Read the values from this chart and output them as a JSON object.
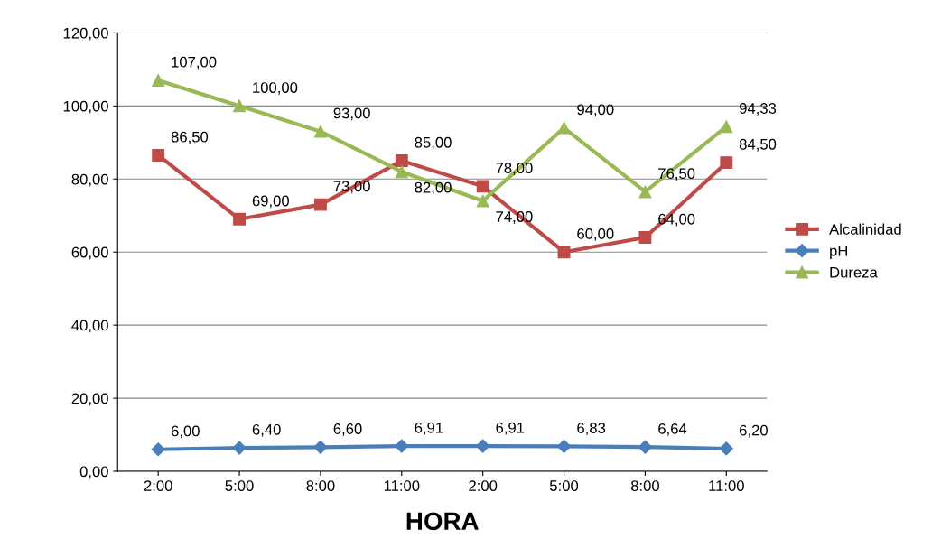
{
  "chart_data": {
    "type": "line",
    "xlabel": "HORA",
    "categories": [
      "2:00",
      "5:00",
      "8:00",
      "11:00",
      "2:00",
      "5:00",
      "8:00",
      "11:00"
    ],
    "series": [
      {
        "name": "Alcalinidad",
        "color": "#be4b48",
        "marker": "square",
        "values": [
          86.5,
          69,
          73,
          85,
          78,
          60,
          64,
          84.5
        ],
        "value_labels": [
          "86,50",
          "69,00",
          "73,00",
          "85,00",
          "78,00",
          "60,00",
          "64,00",
          "84,50"
        ]
      },
      {
        "name": "pH",
        "color": "#4a7ebb",
        "marker": "diamond",
        "values": [
          6,
          6.4,
          6.6,
          6.91,
          6.91,
          6.83,
          6.64,
          6.2
        ],
        "value_labels": [
          "6,00",
          "6,40",
          "6,60",
          "6,91",
          "6,91",
          "6,83",
          "6,64",
          "6,20"
        ]
      },
      {
        "name": "Dureza",
        "color": "#98b954",
        "marker": "triangle",
        "values": [
          107,
          100,
          93,
          82,
          74,
          94,
          76.5,
          94.33
        ],
        "value_labels": [
          "107,00",
          "100,00",
          "93,00",
          "82,00",
          "74,00",
          "94,00",
          "76,50",
          "94,33"
        ]
      }
    ],
    "ylim": [
      0,
      120
    ],
    "yticks": [
      {
        "value": 0,
        "label": "0,00"
      },
      {
        "value": 20,
        "label": "20,00"
      },
      {
        "value": 40,
        "label": "40,00"
      },
      {
        "value": 60,
        "label": "60,00"
      },
      {
        "value": 80,
        "label": "80,00"
      },
      {
        "value": 100,
        "label": "100,00"
      },
      {
        "value": 120,
        "label": "120,00"
      }
    ],
    "grid": "y",
    "legend": "right",
    "line_style": "solid"
  }
}
